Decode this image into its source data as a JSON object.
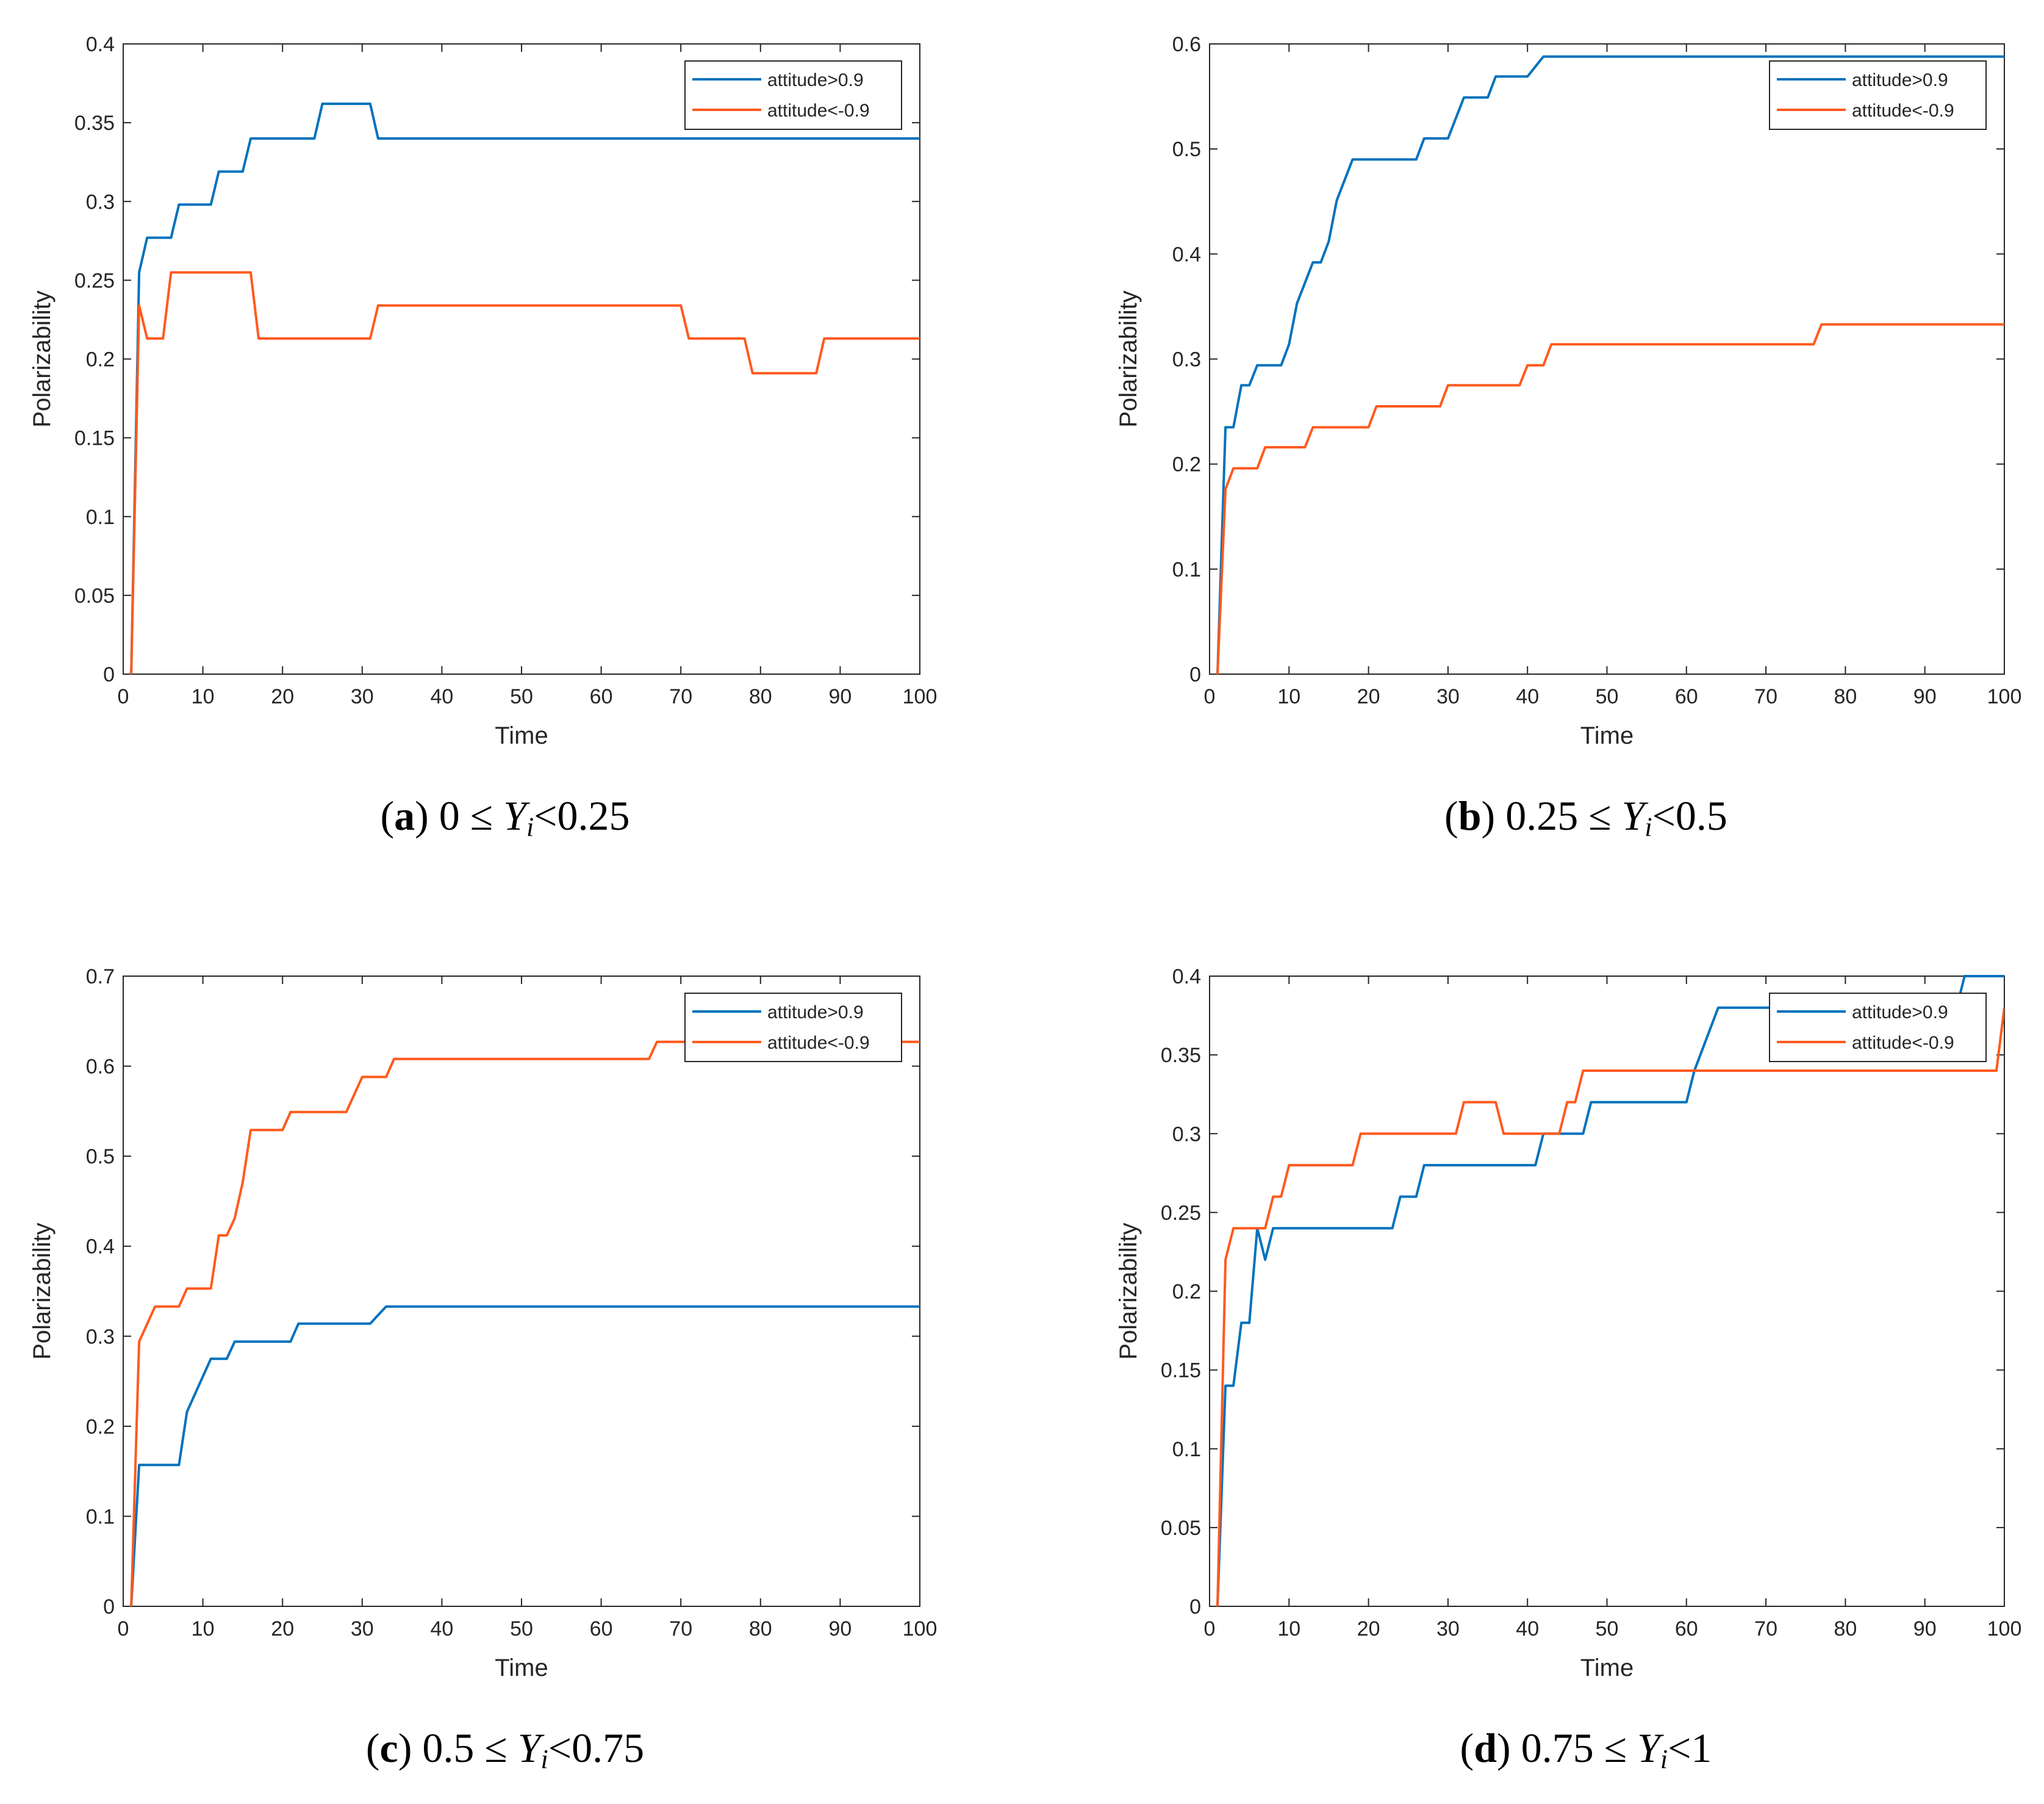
{
  "colors": {
    "series1": "#0072bd",
    "series2": "#ff5a1e",
    "axis": "#262626"
  },
  "chart_data": [
    {
      "type": "line",
      "xlabel": "Time",
      "ylabel": "Polarizability",
      "xlim": [
        0,
        100
      ],
      "ylim": [
        0,
        0.4
      ],
      "xticks": [
        0,
        10,
        20,
        30,
        40,
        50,
        60,
        70,
        80,
        90,
        100
      ],
      "yticks": [
        0,
        0.05,
        0.1,
        0.15,
        0.2,
        0.25,
        0.3,
        0.35,
        0.4
      ],
      "legend_position": "top-right",
      "caption": {
        "letter": "a",
        "pre": " 0 ≤ ",
        "var": "Y",
        "sub": "i",
        "post": "<0.25"
      },
      "series": [
        {
          "name": "attitude>0.9",
          "color": "#0072bd",
          "points": [
            [
              1,
              0
            ],
            [
              2,
              0.255
            ],
            [
              3,
              0.277
            ],
            [
              6,
              0.277
            ],
            [
              7,
              0.298
            ],
            [
              11,
              0.298
            ],
            [
              12,
              0.319
            ],
            [
              15,
              0.319
            ],
            [
              16,
              0.34
            ],
            [
              24,
              0.34
            ],
            [
              25,
              0.362
            ],
            [
              31,
              0.362
            ],
            [
              32,
              0.34
            ],
            [
              100,
              0.34
            ]
          ]
        },
        {
          "name": "attitude<-0.9",
          "color": "#ff5a1e",
          "points": [
            [
              1,
              0
            ],
            [
              2,
              0.234
            ],
            [
              3,
              0.213
            ],
            [
              5,
              0.213
            ],
            [
              6,
              0.255
            ],
            [
              16,
              0.255
            ],
            [
              17,
              0.213
            ],
            [
              31,
              0.213
            ],
            [
              32,
              0.234
            ],
            [
              70,
              0.234
            ],
            [
              71,
              0.213
            ],
            [
              78,
              0.213
            ],
            [
              79,
              0.191
            ],
            [
              87,
              0.191
            ],
            [
              88,
              0.213
            ],
            [
              100,
              0.213
            ]
          ]
        }
      ]
    },
    {
      "type": "line",
      "xlabel": "Time",
      "ylabel": "Polarizability",
      "xlim": [
        0,
        100
      ],
      "ylim": [
        0,
        0.6
      ],
      "xticks": [
        0,
        10,
        20,
        30,
        40,
        50,
        60,
        70,
        80,
        90,
        100
      ],
      "yticks": [
        0,
        0.1,
        0.2,
        0.3,
        0.4,
        0.5,
        0.6
      ],
      "legend_position": "top-right",
      "caption": {
        "letter": "b",
        "pre": " 0.25 ≤ ",
        "var": "Y",
        "sub": "i",
        "post": "<0.5"
      },
      "series": [
        {
          "name": "attitude>0.9",
          "color": "#0072bd",
          "points": [
            [
              1,
              0
            ],
            [
              2,
              0.235
            ],
            [
              3,
              0.235
            ],
            [
              4,
              0.275
            ],
            [
              5,
              0.275
            ],
            [
              6,
              0.294
            ],
            [
              9,
              0.294
            ],
            [
              10,
              0.314
            ],
            [
              11,
              0.353
            ],
            [
              13,
              0.392
            ],
            [
              14,
              0.392
            ],
            [
              15,
              0.412
            ],
            [
              16,
              0.451
            ],
            [
              18,
              0.49
            ],
            [
              26,
              0.49
            ],
            [
              27,
              0.51
            ],
            [
              30,
              0.51
            ],
            [
              32,
              0.549
            ],
            [
              35,
              0.549
            ],
            [
              36,
              0.569
            ],
            [
              40,
              0.569
            ],
            [
              42,
              0.588
            ],
            [
              100,
              0.588
            ]
          ]
        },
        {
          "name": "attitude<-0.9",
          "color": "#ff5a1e",
          "points": [
            [
              1,
              0
            ],
            [
              2,
              0.176
            ],
            [
              3,
              0.196
            ],
            [
              6,
              0.196
            ],
            [
              7,
              0.216
            ],
            [
              12,
              0.216
            ],
            [
              13,
              0.235
            ],
            [
              20,
              0.235
            ],
            [
              21,
              0.255
            ],
            [
              29,
              0.255
            ],
            [
              30,
              0.275
            ],
            [
              39,
              0.275
            ],
            [
              40,
              0.294
            ],
            [
              42,
              0.294
            ],
            [
              43,
              0.314
            ],
            [
              76,
              0.314
            ],
            [
              77,
              0.333
            ],
            [
              100,
              0.333
            ]
          ]
        }
      ]
    },
    {
      "type": "line",
      "xlabel": "Time",
      "ylabel": "Polarizability",
      "xlim": [
        0,
        100
      ],
      "ylim": [
        0,
        0.7
      ],
      "xticks": [
        0,
        10,
        20,
        30,
        40,
        50,
        60,
        70,
        80,
        90,
        100
      ],
      "yticks": [
        0,
        0.1,
        0.2,
        0.3,
        0.4,
        0.5,
        0.6,
        0.7
      ],
      "legend_position": "top-right",
      "caption": {
        "letter": "c",
        "pre": " 0.5 ≤ ",
        "var": "Y",
        "sub": "i",
        "post": "<0.75"
      },
      "series": [
        {
          "name": "attitude>0.9",
          "color": "#0072bd",
          "points": [
            [
              1,
              0
            ],
            [
              2,
              0.157
            ],
            [
              7,
              0.157
            ],
            [
              8,
              0.216
            ],
            [
              11,
              0.275
            ],
            [
              13,
              0.275
            ],
            [
              14,
              0.294
            ],
            [
              21,
              0.294
            ],
            [
              22,
              0.314
            ],
            [
              31,
              0.314
            ],
            [
              33,
              0.333
            ],
            [
              100,
              0.333
            ]
          ]
        },
        {
          "name": "attitude<-0.9",
          "color": "#ff5a1e",
          "points": [
            [
              1,
              0
            ],
            [
              2,
              0.294
            ],
            [
              4,
              0.333
            ],
            [
              7,
              0.333
            ],
            [
              8,
              0.353
            ],
            [
              11,
              0.353
            ],
            [
              12,
              0.412
            ],
            [
              13,
              0.412
            ],
            [
              14,
              0.431
            ],
            [
              15,
              0.471
            ],
            [
              16,
              0.529
            ],
            [
              20,
              0.529
            ],
            [
              21,
              0.549
            ],
            [
              28,
              0.549
            ],
            [
              30,
              0.588
            ],
            [
              33,
              0.588
            ],
            [
              34,
              0.608
            ],
            [
              66,
              0.608
            ],
            [
              67,
              0.627
            ],
            [
              100,
              0.627
            ]
          ]
        }
      ]
    },
    {
      "type": "line",
      "xlabel": "Time",
      "ylabel": "Polarizability",
      "xlim": [
        0,
        100
      ],
      "ylim": [
        0,
        0.4
      ],
      "xticks": [
        0,
        10,
        20,
        30,
        40,
        50,
        60,
        70,
        80,
        90,
        100
      ],
      "yticks": [
        0,
        0.05,
        0.1,
        0.15,
        0.2,
        0.25,
        0.3,
        0.35,
        0.4
      ],
      "legend_position": "top-right",
      "caption": {
        "letter": "d",
        "pre": " 0.75 ≤ ",
        "var": "Y",
        "sub": "i",
        "post": "<1"
      },
      "series": [
        {
          "name": "attitude>0.9",
          "color": "#0072bd",
          "points": [
            [
              1,
              0
            ],
            [
              2,
              0.14
            ],
            [
              3,
              0.14
            ],
            [
              4,
              0.18
            ],
            [
              5,
              0.18
            ],
            [
              6,
              0.24
            ],
            [
              7,
              0.22
            ],
            [
              8,
              0.24
            ],
            [
              23,
              0.24
            ],
            [
              24,
              0.26
            ],
            [
              26,
              0.26
            ],
            [
              27,
              0.28
            ],
            [
              41,
              0.28
            ],
            [
              42,
              0.3
            ],
            [
              47,
              0.3
            ],
            [
              48,
              0.32
            ],
            [
              60,
              0.32
            ],
            [
              61,
              0.34
            ],
            [
              64,
              0.38
            ],
            [
              94,
              0.38
            ],
            [
              95,
              0.4
            ],
            [
              100,
              0.4
            ]
          ]
        },
        {
          "name": "attitude<-0.9",
          "color": "#ff5a1e",
          "points": [
            [
              1,
              0
            ],
            [
              2,
              0.22
            ],
            [
              3,
              0.24
            ],
            [
              7,
              0.24
            ],
            [
              8,
              0.26
            ],
            [
              9,
              0.26
            ],
            [
              10,
              0.28
            ],
            [
              18,
              0.28
            ],
            [
              19,
              0.3
            ],
            [
              31,
              0.3
            ],
            [
              32,
              0.32
            ],
            [
              36,
              0.32
            ],
            [
              37,
              0.3
            ],
            [
              44,
              0.3
            ],
            [
              45,
              0.32
            ],
            [
              46,
              0.32
            ],
            [
              47,
              0.34
            ],
            [
              99,
              0.34
            ],
            [
              100,
              0.38
            ]
          ]
        }
      ]
    }
  ]
}
